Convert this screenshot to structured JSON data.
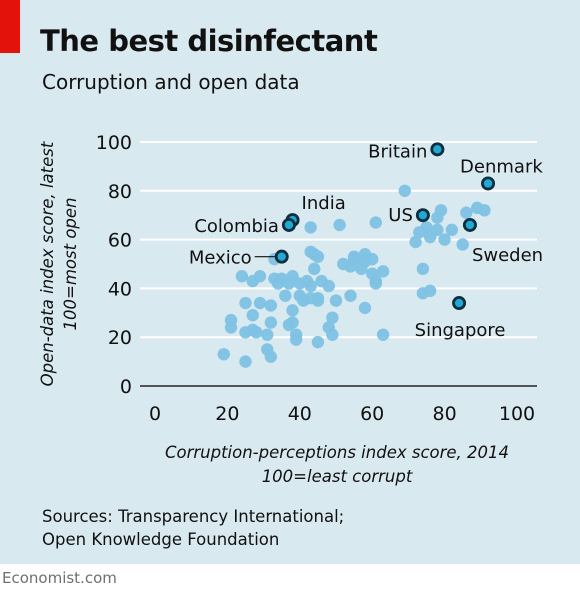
{
  "header": {
    "title": "The best disinfectant",
    "subtitle": "Corruption and open data"
  },
  "footer": {
    "sources_line1": "Sources: Transparency International;",
    "sources_line2": "Open Knowledge Foundation",
    "brand": "Economist.com"
  },
  "colors": {
    "background": "#d9e9f0",
    "accent_red": "#e3120b",
    "dot_fill": "#7ec2e4",
    "highlight_fill": "#21a9d6",
    "highlight_stroke": "#0d2f3f"
  },
  "chart_data": {
    "type": "scatter",
    "title": "The best disinfectant",
    "subtitle": "Corruption and open data",
    "xlabel_line1": "Corruption-perceptions index score, 2014",
    "xlabel_line2": "100=least corrupt",
    "ylabel_line1": "Open-data index score, latest",
    "ylabel_line2": "100=most open",
    "xlim": [
      0,
      100
    ],
    "ylim": [
      0,
      100
    ],
    "xticks": [
      0,
      20,
      40,
      60,
      80,
      100
    ],
    "yticks": [
      0,
      20,
      40,
      60,
      80,
      100
    ],
    "grid": "horizontal",
    "points": [
      {
        "x": 19,
        "y": 13
      },
      {
        "x": 21,
        "y": 27
      },
      {
        "x": 21,
        "y": 24
      },
      {
        "x": 24,
        "y": 45
      },
      {
        "x": 25,
        "y": 34
      },
      {
        "x": 25,
        "y": 22
      },
      {
        "x": 25,
        "y": 10
      },
      {
        "x": 27,
        "y": 43
      },
      {
        "x": 27,
        "y": 29
      },
      {
        "x": 27,
        "y": 23
      },
      {
        "x": 28,
        "y": 22
      },
      {
        "x": 29,
        "y": 45
      },
      {
        "x": 29,
        "y": 34
      },
      {
        "x": 31,
        "y": 21
      },
      {
        "x": 31,
        "y": 15
      },
      {
        "x": 32,
        "y": 33
      },
      {
        "x": 32,
        "y": 26
      },
      {
        "x": 32,
        "y": 12
      },
      {
        "x": 33,
        "y": 52
      },
      {
        "x": 33,
        "y": 44
      },
      {
        "x": 34,
        "y": 42
      },
      {
        "x": 35,
        "y": 44
      },
      {
        "x": 36,
        "y": 37
      },
      {
        "x": 37,
        "y": 42
      },
      {
        "x": 37,
        "y": 25
      },
      {
        "x": 38,
        "y": 31
      },
      {
        "x": 38,
        "y": 26
      },
      {
        "x": 38,
        "y": 45
      },
      {
        "x": 39,
        "y": 21
      },
      {
        "x": 39,
        "y": 19
      },
      {
        "x": 40,
        "y": 37
      },
      {
        "x": 40,
        "y": 42
      },
      {
        "x": 41,
        "y": 35
      },
      {
        "x": 42,
        "y": 43
      },
      {
        "x": 43,
        "y": 55
      },
      {
        "x": 43,
        "y": 65
      },
      {
        "x": 43,
        "y": 41
      },
      {
        "x": 43,
        "y": 36
      },
      {
        "x": 44,
        "y": 48
      },
      {
        "x": 44,
        "y": 54
      },
      {
        "x": 45,
        "y": 53
      },
      {
        "x": 45,
        "y": 36
      },
      {
        "x": 45,
        "y": 35
      },
      {
        "x": 45,
        "y": 18
      },
      {
        "x": 46,
        "y": 43
      },
      {
        "x": 48,
        "y": 41
      },
      {
        "x": 48,
        "y": 24
      },
      {
        "x": 49,
        "y": 28
      },
      {
        "x": 49,
        "y": 21
      },
      {
        "x": 50,
        "y": 35
      },
      {
        "x": 51,
        "y": 66
      },
      {
        "x": 52,
        "y": 50
      },
      {
        "x": 54,
        "y": 37
      },
      {
        "x": 54,
        "y": 49
      },
      {
        "x": 55,
        "y": 52
      },
      {
        "x": 55,
        "y": 53
      },
      {
        "x": 57,
        "y": 48
      },
      {
        "x": 58,
        "y": 54
      },
      {
        "x": 58,
        "y": 51
      },
      {
        "x": 58,
        "y": 32
      },
      {
        "x": 60,
        "y": 46
      },
      {
        "x": 60,
        "y": 52
      },
      {
        "x": 61,
        "y": 67
      },
      {
        "x": 61,
        "y": 43
      },
      {
        "x": 61,
        "y": 42
      },
      {
        "x": 63,
        "y": 47
      },
      {
        "x": 63,
        "y": 21
      },
      {
        "x": 69,
        "y": 80
      },
      {
        "x": 72,
        "y": 59
      },
      {
        "x": 73,
        "y": 63
      },
      {
        "x": 74,
        "y": 48
      },
      {
        "x": 74,
        "y": 38
      },
      {
        "x": 75,
        "y": 65
      },
      {
        "x": 76,
        "y": 39
      },
      {
        "x": 76,
        "y": 61
      },
      {
        "x": 78,
        "y": 64
      },
      {
        "x": 78,
        "y": 69
      },
      {
        "x": 79,
        "y": 72
      },
      {
        "x": 80,
        "y": 60
      },
      {
        "x": 82,
        "y": 64
      },
      {
        "x": 85,
        "y": 58
      },
      {
        "x": 86,
        "y": 71
      },
      {
        "x": 89,
        "y": 73
      },
      {
        "x": 91,
        "y": 72
      }
    ],
    "highlights": [
      {
        "name": "Britain",
        "x": 78,
        "y": 97
      },
      {
        "name": "Denmark",
        "x": 92,
        "y": 83
      },
      {
        "name": "India",
        "x": 38,
        "y": 68
      },
      {
        "name": "Colombia",
        "x": 37,
        "y": 66
      },
      {
        "name": "US",
        "x": 74,
        "y": 70
      },
      {
        "name": "Sweden",
        "x": 87,
        "y": 66
      },
      {
        "name": "Mexico",
        "x": 35,
        "y": 53
      },
      {
        "name": "Singapore",
        "x": 84,
        "y": 34
      }
    ]
  }
}
